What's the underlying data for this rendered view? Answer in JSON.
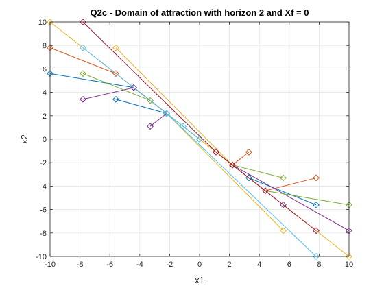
{
  "chart_data": {
    "type": "line",
    "title": "Q2c - Domain of attraction with horizon 2 and Xf = 0",
    "xlabel": "x1",
    "ylabel": "x2",
    "xlim": [
      -10,
      10
    ],
    "ylim": [
      -10,
      10
    ],
    "xticks": [
      -10,
      -8,
      -6,
      -4,
      -2,
      0,
      2,
      4,
      6,
      8,
      10
    ],
    "yticks": [
      -10,
      -8,
      -6,
      -4,
      -2,
      0,
      2,
      4,
      6,
      8,
      10
    ],
    "grid": true,
    "marker": "diamond",
    "series": [
      {
        "color": "#0072BD",
        "points": [
          [
            -10,
            5.6
          ],
          [
            -4.4,
            4.4
          ],
          [
            -2.2,
            2.2
          ]
        ]
      },
      {
        "color": "#0072BD",
        "points": [
          [
            -5.6,
            3.4
          ],
          [
            -2.2,
            2.2
          ]
        ]
      },
      {
        "color": "#0072BD",
        "points": [
          [
            7.8,
            -5.6
          ],
          [
            3.3,
            -3.3
          ],
          [
            2.2,
            -2.2
          ]
        ]
      },
      {
        "color": "#D95319",
        "points": [
          [
            -10,
            7.8
          ],
          [
            -5.6,
            5.6
          ],
          [
            -2.2,
            2.2
          ]
        ]
      },
      {
        "color": "#D95319",
        "points": [
          [
            3.3,
            -1.1
          ],
          [
            2.2,
            -2.2
          ]
        ]
      },
      {
        "color": "#D95319",
        "points": [
          [
            7.8,
            -3.3
          ],
          [
            4.4,
            -4.4
          ],
          [
            2.2,
            -2.2
          ]
        ]
      },
      {
        "color": "#EDB120",
        "points": [
          [
            -10,
            10
          ],
          [
            2.2,
            -2.2
          ]
        ]
      },
      {
        "color": "#EDB120",
        "points": [
          [
            -5.6,
            7.8
          ],
          [
            2.2,
            -2.2
          ]
        ]
      },
      {
        "color": "#EDB120",
        "points": [
          [
            5.6,
            -7.8
          ],
          [
            -2.2,
            2.2
          ]
        ]
      },
      {
        "color": "#EDB120",
        "points": [
          [
            10,
            -10
          ],
          [
            -2.2,
            2.2
          ]
        ]
      },
      {
        "color": "#7E2F8E",
        "points": [
          [
            -7.8,
            3.4
          ],
          [
            -4.4,
            4.4
          ],
          [
            -2.2,
            2.2
          ]
        ]
      },
      {
        "color": "#7E2F8E",
        "points": [
          [
            -3.3,
            1.1
          ],
          [
            -2.2,
            2.2
          ]
        ]
      },
      {
        "color": "#7E2F8E",
        "points": [
          [
            5.6,
            -5.6
          ],
          [
            2.2,
            -2.2
          ]
        ]
      },
      {
        "color": "#7E2F8E",
        "points": [
          [
            10,
            -7.8
          ],
          [
            2.2,
            -2.2
          ]
        ]
      },
      {
        "color": "#77AC30",
        "points": [
          [
            -7.8,
            5.6
          ],
          [
            -3.3,
            3.3
          ],
          [
            -2.2,
            2.2
          ],
          [
            0,
            0
          ]
        ]
      },
      {
        "color": "#77AC30",
        "points": [
          [
            5.6,
            -3.3
          ],
          [
            2.2,
            -2.2
          ]
        ]
      },
      {
        "color": "#77AC30",
        "points": [
          [
            10,
            -5.6
          ],
          [
            4.4,
            -4.4
          ],
          [
            2.2,
            -2.2
          ]
        ]
      },
      {
        "color": "#4DBEEE",
        "points": [
          [
            -7.8,
            7.8
          ],
          [
            -2.2,
            2.2
          ],
          [
            -1.1,
            1.1
          ],
          [
            0,
            0
          ]
        ]
      },
      {
        "color": "#4DBEEE",
        "points": [
          [
            7.8,
            -10
          ],
          [
            -2.2,
            2.2
          ]
        ]
      },
      {
        "color": "#A2142F",
        "points": [
          [
            -7.8,
            10
          ],
          [
            1.1,
            -1.1
          ],
          [
            2.2,
            -2.2
          ]
        ]
      },
      {
        "color": "#A2142F",
        "points": [
          [
            7.8,
            -7.8
          ],
          [
            4.4,
            -4.4
          ],
          [
            2.2,
            -2.2
          ]
        ]
      }
    ]
  }
}
